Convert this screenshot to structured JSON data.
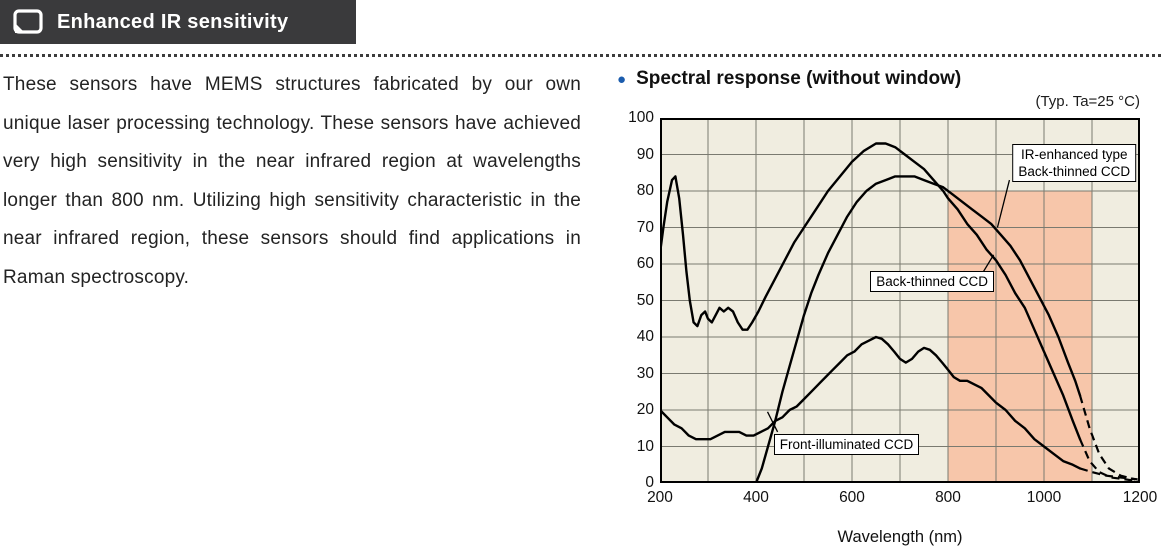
{
  "header": {
    "title": "Enhanced IR sensitivity",
    "bar_color": "#3a3a3c"
  },
  "intro": {
    "text": "These sensors have MEMS structures fabricated by our own unique laser processing technology. These sensors have achieved very high sensitivity in the near infrared region at wavelengths longer than 800 nm. Utilizing high sensitivity characteristic in the near infrared region, these sensors should find applications in Raman spectroscopy."
  },
  "section": {
    "bullet": "●",
    "title": "Spectral response (without window)",
    "condition": "(Typ. Ta=25 °C)"
  },
  "chart_data": {
    "type": "line",
    "title": "Spectral response (without window)",
    "xlabel": "Wavelength (nm)",
    "ylabel": "",
    "xlim": [
      200,
      1200
    ],
    "ylim": [
      0,
      100
    ],
    "xticks": [
      200,
      400,
      600,
      800,
      1000,
      1200
    ],
    "yticks": [
      0,
      10,
      20,
      30,
      40,
      50,
      60,
      70,
      80,
      90,
      100
    ],
    "x_grid_step": 100,
    "y_grid_step": 10,
    "grid": true,
    "plot_bg": "#f0ede0",
    "grid_color": "#7a7a70",
    "line_color": "#000000",
    "highlight_region": {
      "x0": 800,
      "x1": 1100,
      "y0": 0,
      "y1": 80,
      "color": "#f7c6aa"
    },
    "series": [
      {
        "name": "Back-thinned CCD",
        "points": [
          [
            200,
            63
          ],
          [
            207,
            70
          ],
          [
            215,
            77
          ],
          [
            225,
            83
          ],
          [
            232,
            84
          ],
          [
            240,
            78
          ],
          [
            248,
            68
          ],
          [
            255,
            58
          ],
          [
            262,
            50
          ],
          [
            270,
            44
          ],
          [
            278,
            43
          ],
          [
            286,
            46
          ],
          [
            294,
            47
          ],
          [
            300,
            45
          ],
          [
            308,
            44
          ],
          [
            316,
            46
          ],
          [
            324,
            48
          ],
          [
            333,
            47
          ],
          [
            342,
            48
          ],
          [
            352,
            47
          ],
          [
            362,
            44
          ],
          [
            372,
            42
          ],
          [
            382,
            42
          ],
          [
            392,
            44
          ],
          [
            405,
            47
          ],
          [
            420,
            51
          ],
          [
            440,
            56
          ],
          [
            460,
            61
          ],
          [
            480,
            66
          ],
          [
            500,
            70
          ],
          [
            525,
            75
          ],
          [
            550,
            80
          ],
          [
            575,
            84
          ],
          [
            600,
            88
          ],
          [
            625,
            91
          ],
          [
            650,
            93
          ],
          [
            670,
            93
          ],
          [
            690,
            92
          ],
          [
            710,
            90
          ],
          [
            730,
            88
          ],
          [
            750,
            86
          ],
          [
            770,
            83
          ],
          [
            790,
            80
          ],
          [
            800,
            78
          ],
          [
            820,
            75
          ],
          [
            840,
            71
          ],
          [
            860,
            68
          ],
          [
            880,
            64
          ],
          [
            900,
            61
          ],
          [
            920,
            57
          ],
          [
            940,
            52
          ],
          [
            960,
            48
          ],
          [
            980,
            42
          ],
          [
            1000,
            36
          ],
          [
            1020,
            30
          ],
          [
            1040,
            24
          ],
          [
            1060,
            17
          ],
          [
            1075,
            12
          ]
        ],
        "dash_tail": [
          [
            1075,
            12
          ],
          [
            1095,
            6
          ],
          [
            1115,
            3
          ],
          [
            1140,
            1.5
          ],
          [
            1170,
            1
          ],
          [
            1195,
            0.5
          ]
        ]
      },
      {
        "name": "IR-enhanced type Back-thinned CCD",
        "points": [
          [
            400,
            0
          ],
          [
            412,
            4
          ],
          [
            425,
            10
          ],
          [
            440,
            17
          ],
          [
            455,
            25
          ],
          [
            470,
            32
          ],
          [
            485,
            39
          ],
          [
            500,
            46
          ],
          [
            515,
            52
          ],
          [
            530,
            57
          ],
          [
            550,
            63
          ],
          [
            570,
            68
          ],
          [
            590,
            73
          ],
          [
            610,
            77
          ],
          [
            630,
            80
          ],
          [
            650,
            82
          ],
          [
            670,
            83
          ],
          [
            690,
            84
          ],
          [
            710,
            84
          ],
          [
            730,
            84
          ],
          [
            750,
            83
          ],
          [
            770,
            82
          ],
          [
            790,
            81
          ],
          [
            810,
            79
          ],
          [
            830,
            77
          ],
          [
            850,
            75
          ],
          [
            870,
            73
          ],
          [
            890,
            71
          ],
          [
            910,
            68
          ],
          [
            930,
            65
          ],
          [
            950,
            61
          ],
          [
            970,
            56
          ],
          [
            990,
            51
          ],
          [
            1010,
            46
          ],
          [
            1030,
            40
          ],
          [
            1050,
            33
          ],
          [
            1065,
            28
          ],
          [
            1075,
            24
          ]
        ],
        "dash_tail": [
          [
            1075,
            24
          ],
          [
            1095,
            15
          ],
          [
            1115,
            8
          ],
          [
            1135,
            4
          ],
          [
            1160,
            2
          ],
          [
            1190,
            1
          ]
        ]
      },
      {
        "name": "Front-illuminated CCD",
        "points": [
          [
            200,
            20
          ],
          [
            215,
            18
          ],
          [
            230,
            16
          ],
          [
            245,
            15
          ],
          [
            260,
            13
          ],
          [
            275,
            12
          ],
          [
            290,
            12
          ],
          [
            305,
            12
          ],
          [
            320,
            13
          ],
          [
            335,
            14
          ],
          [
            350,
            14
          ],
          [
            365,
            14
          ],
          [
            380,
            13
          ],
          [
            395,
            13
          ],
          [
            410,
            14
          ],
          [
            425,
            15
          ],
          [
            440,
            17
          ],
          [
            455,
            18
          ],
          [
            470,
            20
          ],
          [
            485,
            21
          ],
          [
            500,
            23
          ],
          [
            515,
            25
          ],
          [
            530,
            27
          ],
          [
            545,
            29
          ],
          [
            560,
            31
          ],
          [
            575,
            33
          ],
          [
            590,
            35
          ],
          [
            605,
            36
          ],
          [
            620,
            38
          ],
          [
            635,
            39
          ],
          [
            650,
            40
          ],
          [
            662,
            39.5
          ],
          [
            675,
            38
          ],
          [
            688,
            36
          ],
          [
            700,
            34
          ],
          [
            712,
            33
          ],
          [
            725,
            34
          ],
          [
            738,
            36
          ],
          [
            750,
            37
          ],
          [
            762,
            36.5
          ],
          [
            775,
            35
          ],
          [
            788,
            33
          ],
          [
            800,
            31
          ],
          [
            812,
            29
          ],
          [
            825,
            28
          ],
          [
            840,
            28
          ],
          [
            855,
            27
          ],
          [
            870,
            26
          ],
          [
            885,
            24
          ],
          [
            900,
            22
          ],
          [
            920,
            20
          ],
          [
            940,
            17
          ],
          [
            960,
            15
          ],
          [
            980,
            12
          ],
          [
            1000,
            10
          ],
          [
            1020,
            8
          ],
          [
            1040,
            6
          ],
          [
            1060,
            5
          ],
          [
            1075,
            4
          ]
        ],
        "dash_tail": [
          [
            1075,
            4
          ],
          [
            1100,
            3
          ],
          [
            1130,
            2
          ],
          [
            1160,
            1.5
          ],
          [
            1195,
            1
          ]
        ]
      }
    ],
    "annotations": [
      {
        "id": "ir",
        "lines": [
          "IR-enhanced type",
          "Back-thinned CCD"
        ],
        "box": [
          1192,
          93
        ],
        "align": "right",
        "leader": [
          [
            928,
            83
          ],
          [
            903,
            70
          ]
        ]
      },
      {
        "id": "bt",
        "lines": [
          "Back-thinned CCD"
        ],
        "box": [
          638,
          58
        ],
        "align": "left",
        "leader": [
          [
            865,
            56
          ],
          [
            895,
            62.5
          ]
        ]
      },
      {
        "id": "fi",
        "lines": [
          "Front-illuminated CCD"
        ],
        "box": [
          437,
          13.5
        ],
        "align": "left",
        "leader": [
          [
            445,
            14
          ],
          [
            424,
            19.5
          ]
        ]
      }
    ]
  }
}
